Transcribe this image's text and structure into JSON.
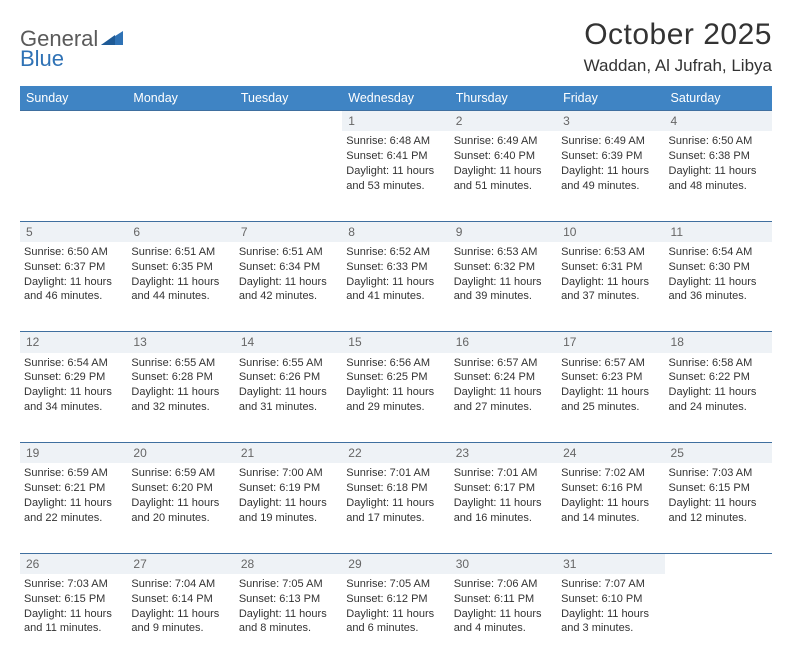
{
  "brand": {
    "name1": "General",
    "name2": "Blue",
    "shape_color": "#2f72b5"
  },
  "header": {
    "month_title": "October 2025",
    "location": "Waddan, Al Jufrah, Libya"
  },
  "calendar": {
    "header_bg": "#3f84c4",
    "header_fg": "#ffffff",
    "daynum_bg": "#eef2f6",
    "border_color": "#3f6f9f",
    "text_color": "#333333",
    "days_of_week": [
      "Sunday",
      "Monday",
      "Tuesday",
      "Wednesday",
      "Thursday",
      "Friday",
      "Saturday"
    ],
    "weeks": [
      [
        null,
        null,
        null,
        {
          "n": "1",
          "sunrise": "6:48 AM",
          "sunset": "6:41 PM",
          "day_h": "11",
          "day_m": "53"
        },
        {
          "n": "2",
          "sunrise": "6:49 AM",
          "sunset": "6:40 PM",
          "day_h": "11",
          "day_m": "51"
        },
        {
          "n": "3",
          "sunrise": "6:49 AM",
          "sunset": "6:39 PM",
          "day_h": "11",
          "day_m": "49"
        },
        {
          "n": "4",
          "sunrise": "6:50 AM",
          "sunset": "6:38 PM",
          "day_h": "11",
          "day_m": "48"
        }
      ],
      [
        {
          "n": "5",
          "sunrise": "6:50 AM",
          "sunset": "6:37 PM",
          "day_h": "11",
          "day_m": "46"
        },
        {
          "n": "6",
          "sunrise": "6:51 AM",
          "sunset": "6:35 PM",
          "day_h": "11",
          "day_m": "44"
        },
        {
          "n": "7",
          "sunrise": "6:51 AM",
          "sunset": "6:34 PM",
          "day_h": "11",
          "day_m": "42"
        },
        {
          "n": "8",
          "sunrise": "6:52 AM",
          "sunset": "6:33 PM",
          "day_h": "11",
          "day_m": "41"
        },
        {
          "n": "9",
          "sunrise": "6:53 AM",
          "sunset": "6:32 PM",
          "day_h": "11",
          "day_m": "39"
        },
        {
          "n": "10",
          "sunrise": "6:53 AM",
          "sunset": "6:31 PM",
          "day_h": "11",
          "day_m": "37"
        },
        {
          "n": "11",
          "sunrise": "6:54 AM",
          "sunset": "6:30 PM",
          "day_h": "11",
          "day_m": "36"
        }
      ],
      [
        {
          "n": "12",
          "sunrise": "6:54 AM",
          "sunset": "6:29 PM",
          "day_h": "11",
          "day_m": "34"
        },
        {
          "n": "13",
          "sunrise": "6:55 AM",
          "sunset": "6:28 PM",
          "day_h": "11",
          "day_m": "32"
        },
        {
          "n": "14",
          "sunrise": "6:55 AM",
          "sunset": "6:26 PM",
          "day_h": "11",
          "day_m": "31"
        },
        {
          "n": "15",
          "sunrise": "6:56 AM",
          "sunset": "6:25 PM",
          "day_h": "11",
          "day_m": "29"
        },
        {
          "n": "16",
          "sunrise": "6:57 AM",
          "sunset": "6:24 PM",
          "day_h": "11",
          "day_m": "27"
        },
        {
          "n": "17",
          "sunrise": "6:57 AM",
          "sunset": "6:23 PM",
          "day_h": "11",
          "day_m": "25"
        },
        {
          "n": "18",
          "sunrise": "6:58 AM",
          "sunset": "6:22 PM",
          "day_h": "11",
          "day_m": "24"
        }
      ],
      [
        {
          "n": "19",
          "sunrise": "6:59 AM",
          "sunset": "6:21 PM",
          "day_h": "11",
          "day_m": "22"
        },
        {
          "n": "20",
          "sunrise": "6:59 AM",
          "sunset": "6:20 PM",
          "day_h": "11",
          "day_m": "20"
        },
        {
          "n": "21",
          "sunrise": "7:00 AM",
          "sunset": "6:19 PM",
          "day_h": "11",
          "day_m": "19"
        },
        {
          "n": "22",
          "sunrise": "7:01 AM",
          "sunset": "6:18 PM",
          "day_h": "11",
          "day_m": "17"
        },
        {
          "n": "23",
          "sunrise": "7:01 AM",
          "sunset": "6:17 PM",
          "day_h": "11",
          "day_m": "16"
        },
        {
          "n": "24",
          "sunrise": "7:02 AM",
          "sunset": "6:16 PM",
          "day_h": "11",
          "day_m": "14"
        },
        {
          "n": "25",
          "sunrise": "7:03 AM",
          "sunset": "6:15 PM",
          "day_h": "11",
          "day_m": "12"
        }
      ],
      [
        {
          "n": "26",
          "sunrise": "7:03 AM",
          "sunset": "6:15 PM",
          "day_h": "11",
          "day_m": "11"
        },
        {
          "n": "27",
          "sunrise": "7:04 AM",
          "sunset": "6:14 PM",
          "day_h": "11",
          "day_m": "9"
        },
        {
          "n": "28",
          "sunrise": "7:05 AM",
          "sunset": "6:13 PM",
          "day_h": "11",
          "day_m": "8"
        },
        {
          "n": "29",
          "sunrise": "7:05 AM",
          "sunset": "6:12 PM",
          "day_h": "11",
          "day_m": "6"
        },
        {
          "n": "30",
          "sunrise": "7:06 AM",
          "sunset": "6:11 PM",
          "day_h": "11",
          "day_m": "4"
        },
        {
          "n": "31",
          "sunrise": "7:07 AM",
          "sunset": "6:10 PM",
          "day_h": "11",
          "day_m": "3"
        },
        null
      ]
    ]
  },
  "labels": {
    "sunrise": "Sunrise:",
    "sunset": "Sunset:",
    "daylight": "Daylight:",
    "hours": "hours",
    "and": "and",
    "minutes": "minutes."
  }
}
